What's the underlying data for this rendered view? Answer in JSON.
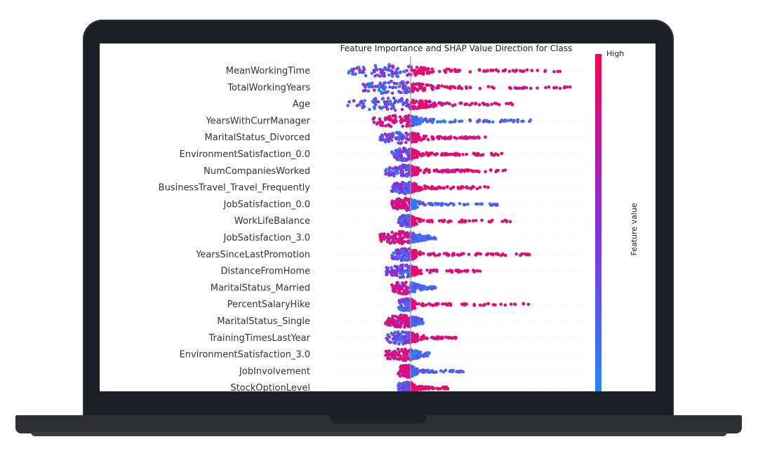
{
  "chart_data": {
    "type": "scatter",
    "title": "Feature Importance and SHAP Value Direction for Class",
    "colorbar": {
      "high_label": "High",
      "label": "Feature value",
      "colors": [
        "#1e88ff",
        "#8a2be2",
        "#ff0051"
      ]
    },
    "zero_line": 0,
    "features": [
      {
        "name": "MeanWorkingTime",
        "min": -0.1,
        "max": 0.24
      },
      {
        "name": "TotalWorkingYears",
        "min": -0.08,
        "max": 0.26
      },
      {
        "name": "Age",
        "min": -0.1,
        "max": 0.17
      },
      {
        "name": "YearsWithCurrManager",
        "min": -0.06,
        "max": 0.19
      },
      {
        "name": "MaritalStatus_Divorced",
        "min": -0.05,
        "max": 0.12
      },
      {
        "name": "EnvironmentSatisfaction_0.0",
        "min": -0.03,
        "max": 0.15
      },
      {
        "name": "NumCompaniesWorked",
        "min": -0.04,
        "max": 0.15
      },
      {
        "name": "BusinessTravel_Travel_Frequently",
        "min": -0.03,
        "max": 0.13
      },
      {
        "name": "JobSatisfaction_0.0",
        "min": -0.03,
        "max": 0.14
      },
      {
        "name": "WorkLifeBalance",
        "min": -0.02,
        "max": 0.16
      },
      {
        "name": "JobSatisfaction_3.0",
        "min": -0.05,
        "max": 0.04
      },
      {
        "name": "YearsSinceLastPromotion",
        "min": -0.03,
        "max": 0.19
      },
      {
        "name": "DistanceFromHome",
        "min": -0.04,
        "max": 0.11
      },
      {
        "name": "MaritalStatus_Married",
        "min": -0.03,
        "max": 0.04
      },
      {
        "name": "PercentSalaryHike",
        "min": -0.02,
        "max": 0.2
      },
      {
        "name": "MaritalStatus_Single",
        "min": -0.04,
        "max": 0.02
      },
      {
        "name": "TrainingTimesLastYear",
        "min": -0.04,
        "max": 0.08
      },
      {
        "name": "EnvironmentSatisfaction_3.0",
        "min": -0.04,
        "max": 0.03
      },
      {
        "name": "JobInvolvement",
        "min": -0.02,
        "max": 0.09
      },
      {
        "name": "StockOptionLevel",
        "min": -0.02,
        "max": 0.06
      }
    ]
  }
}
